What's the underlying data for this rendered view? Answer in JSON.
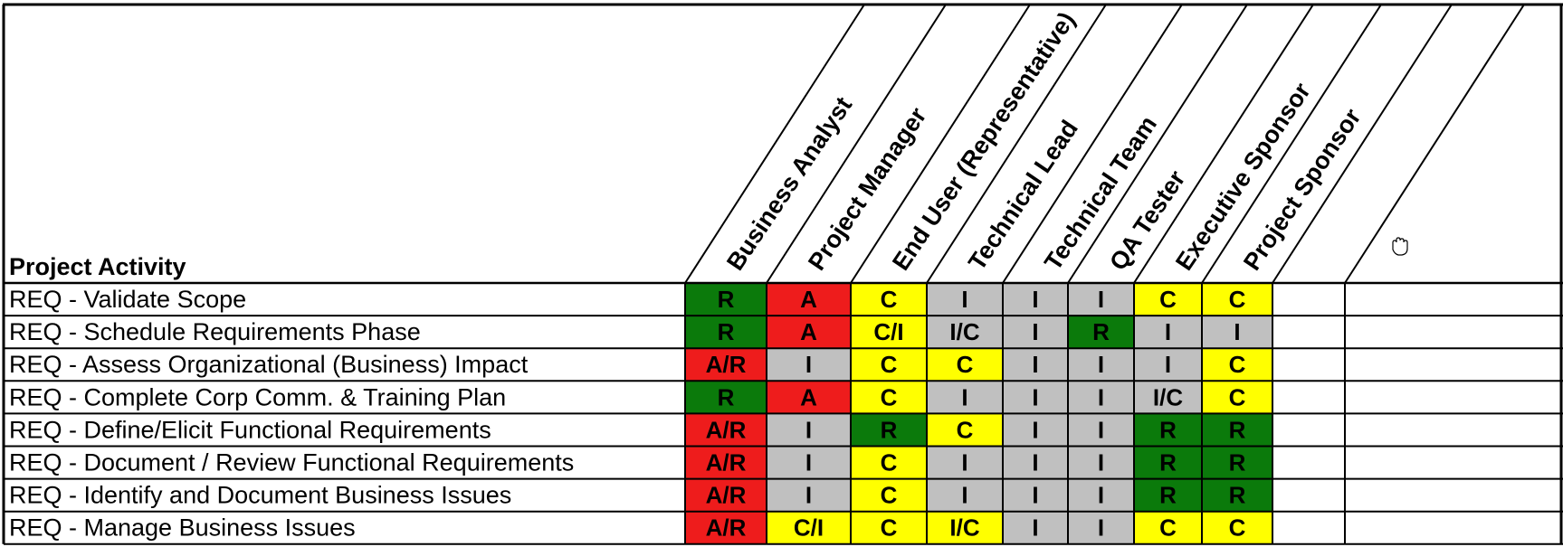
{
  "header": {
    "activity_title": "Project Activity"
  },
  "roles": [
    "Business Analyst",
    "Project Manager",
    "End User (Representative)",
    "Technical Lead",
    "Technical Team",
    "QA Tester",
    "Executive Sponsor",
    "Project Sponsor"
  ],
  "colors": {
    "R": "#0b7a0b",
    "A": "#ee1c1c",
    "C": "#ffff00",
    "I": "#c0c0c0"
  },
  "legend_color_rule": "R=green, A=red, C=yellow, I=gray",
  "rows": [
    {
      "activity": "REQ - Validate Scope",
      "cells": [
        {
          "v": "R",
          "c": "R"
        },
        {
          "v": "A",
          "c": "A"
        },
        {
          "v": "C",
          "c": "C"
        },
        {
          "v": "I",
          "c": "I"
        },
        {
          "v": "I",
          "c": "I"
        },
        {
          "v": "I",
          "c": "I"
        },
        {
          "v": "C",
          "c": "C"
        },
        {
          "v": "C",
          "c": "C"
        }
      ]
    },
    {
      "activity": "REQ - Schedule Requirements Phase",
      "cells": [
        {
          "v": "R",
          "c": "R"
        },
        {
          "v": "A",
          "c": "A"
        },
        {
          "v": "C/I",
          "c": "C"
        },
        {
          "v": "I/C",
          "c": "I"
        },
        {
          "v": "I",
          "c": "I"
        },
        {
          "v": "R",
          "c": "R"
        },
        {
          "v": "I",
          "c": "I"
        },
        {
          "v": "I",
          "c": "I"
        }
      ]
    },
    {
      "activity": "REQ - Assess Organizational (Business) Impact",
      "cells": [
        {
          "v": "A/R",
          "c": "A"
        },
        {
          "v": "I",
          "c": "I"
        },
        {
          "v": "C",
          "c": "C"
        },
        {
          "v": "C",
          "c": "C"
        },
        {
          "v": "I",
          "c": "I"
        },
        {
          "v": "I",
          "c": "I"
        },
        {
          "v": "I",
          "c": "I"
        },
        {
          "v": "C",
          "c": "C"
        }
      ]
    },
    {
      "activity": "REQ - Complete Corp Comm. & Training Plan",
      "cells": [
        {
          "v": "R",
          "c": "R"
        },
        {
          "v": "A",
          "c": "A"
        },
        {
          "v": "C",
          "c": "C"
        },
        {
          "v": "I",
          "c": "I"
        },
        {
          "v": "I",
          "c": "I"
        },
        {
          "v": "I",
          "c": "I"
        },
        {
          "v": "I/C",
          "c": "I"
        },
        {
          "v": "C",
          "c": "C"
        }
      ]
    },
    {
      "activity": "REQ - Define/Elicit Functional Requirements",
      "cells": [
        {
          "v": "A/R",
          "c": "A"
        },
        {
          "v": "I",
          "c": "I"
        },
        {
          "v": "R",
          "c": "R"
        },
        {
          "v": "C",
          "c": "C"
        },
        {
          "v": "I",
          "c": "I"
        },
        {
          "v": "I",
          "c": "I"
        },
        {
          "v": "R",
          "c": "R"
        },
        {
          "v": "R",
          "c": "R"
        }
      ]
    },
    {
      "activity": "REQ - Document / Review Functional Requirements",
      "cells": [
        {
          "v": "A/R",
          "c": "A"
        },
        {
          "v": "I",
          "c": "I"
        },
        {
          "v": "C",
          "c": "C"
        },
        {
          "v": "I",
          "c": "I"
        },
        {
          "v": "I",
          "c": "I"
        },
        {
          "v": "I",
          "c": "I"
        },
        {
          "v": "R",
          "c": "R"
        },
        {
          "v": "R",
          "c": "R"
        }
      ]
    },
    {
      "activity": "REQ - Identify and Document  Business Issues",
      "cells": [
        {
          "v": "A/R",
          "c": "A"
        },
        {
          "v": "I",
          "c": "I"
        },
        {
          "v": "C",
          "c": "C"
        },
        {
          "v": "I",
          "c": "I"
        },
        {
          "v": "I",
          "c": "I"
        },
        {
          "v": "I",
          "c": "I"
        },
        {
          "v": "R",
          "c": "R"
        },
        {
          "v": "R",
          "c": "R"
        }
      ]
    },
    {
      "activity": "REQ - Manage Business Issues",
      "cells": [
        {
          "v": "A/R",
          "c": "A"
        },
        {
          "v": "C/I",
          "c": "C"
        },
        {
          "v": "C",
          "c": "C"
        },
        {
          "v": "I/C",
          "c": "C"
        },
        {
          "v": "I",
          "c": "I"
        },
        {
          "v": "I",
          "c": "I"
        },
        {
          "v": "C",
          "c": "C"
        },
        {
          "v": "C",
          "c": "C"
        }
      ]
    }
  ],
  "cursor_icon": "hand-cursor-icon"
}
